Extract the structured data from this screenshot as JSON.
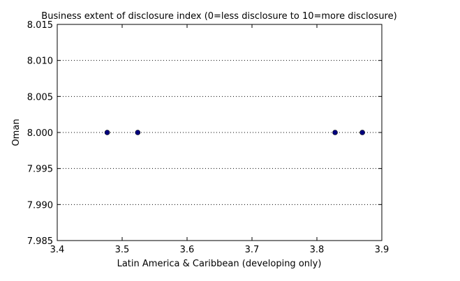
{
  "chart_data": {
    "type": "scatter",
    "title": "Business extent of disclosure index (0=less disclosure to 10=more disclosure)",
    "xlabel": "Latin America & Caribbean (developing only)",
    "ylabel": "Oman",
    "xlim": [
      3.4,
      3.9
    ],
    "ylim": [
      7.985,
      8.015
    ],
    "x_ticks": [
      3.4,
      3.5,
      3.6,
      3.7,
      3.8,
      3.9
    ],
    "x_tick_labels": [
      "3.4",
      "3.5",
      "3.6",
      "3.7",
      "3.8",
      "3.9"
    ],
    "y_ticks": [
      7.985,
      7.99,
      7.995,
      8.0,
      8.005,
      8.01,
      8.015
    ],
    "y_tick_labels": [
      "7.985",
      "7.990",
      "7.995",
      "8.000",
      "8.005",
      "8.010",
      "8.015"
    ],
    "grid": "horizontal-dotted",
    "marker_color": "#00007f",
    "points": [
      {
        "x": 3.477,
        "y": 8.0
      },
      {
        "x": 3.524,
        "y": 8.0
      },
      {
        "x": 3.828,
        "y": 8.0
      },
      {
        "x": 3.87,
        "y": 8.0
      }
    ]
  }
}
